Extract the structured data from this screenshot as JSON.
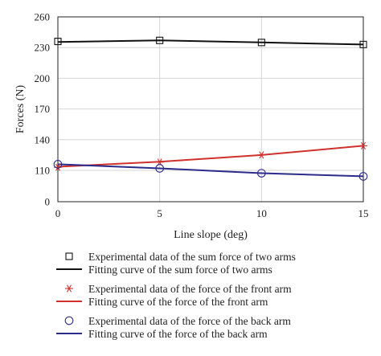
{
  "chart_data": {
    "type": "line",
    "xlabel": "Line slope (deg)",
    "ylabel": "Forces (N)",
    "xlim": [
      0,
      15
    ],
    "ylim": [
      0,
      260
    ],
    "x_ticks": [
      0,
      5,
      10,
      15
    ],
    "y_ticks": [
      0,
      110,
      140,
      170,
      200,
      230,
      260
    ],
    "grid": true,
    "legend_placement": "below",
    "x": [
      0,
      5,
      10,
      15
    ],
    "series": [
      {
        "key": "sum",
        "experimental_label": "Experimental data of the sum force of two arms",
        "fit_label": "Fitting curve of the sum force of two arms",
        "marker": "square",
        "color": "#111111",
        "experimental": [
          236,
          237,
          235,
          233
        ],
        "fit": [
          235.5,
          237,
          235,
          233
        ]
      },
      {
        "key": "front",
        "experimental_label": "Experimental data of the force of the front arm",
        "fit_label": "Fitting curve of the force of the front arm",
        "marker": "asterisk",
        "color": "#d0312d",
        "experimental": [
          113,
          118,
          125,
          134
        ],
        "fit": [
          113.5,
          118.5,
          125,
          134
        ]
      },
      {
        "key": "back",
        "experimental_label": "Experimental data of the force of the back arm",
        "fit_label": "Fitting curve of the force of the back arm",
        "marker": "circle",
        "color": "#2b2b8c",
        "experimental": [
          116,
          112,
          100,
          89
        ],
        "fit": [
          116,
          112,
          100,
          89
        ]
      }
    ]
  }
}
